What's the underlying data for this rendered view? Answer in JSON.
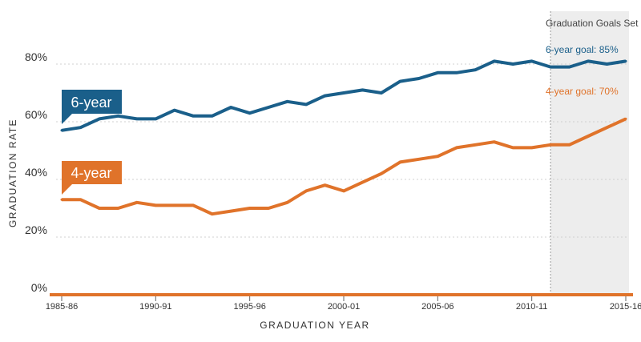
{
  "chart_data": {
    "type": "line",
    "xlabel": "GRADUATION YEAR",
    "ylabel": "GRADUATION RATE",
    "ylim": [
      0,
      85
    ],
    "y_ticks": [
      {
        "value": 0,
        "label": "0%"
      },
      {
        "value": 20,
        "label": "20%"
      },
      {
        "value": 40,
        "label": "40%"
      },
      {
        "value": 60,
        "label": "60%"
      },
      {
        "value": 80,
        "label": "80%"
      }
    ],
    "x_ticks": [
      {
        "index": 0,
        "label": "1985-86"
      },
      {
        "index": 5,
        "label": "1990-91"
      },
      {
        "index": 10,
        "label": "1995-96"
      },
      {
        "index": 15,
        "label": "2000-01"
      },
      {
        "index": 20,
        "label": "2005-06"
      },
      {
        "index": 25,
        "label": "2010-11"
      },
      {
        "index": 30,
        "label": "2015-16"
      }
    ],
    "x": [
      "1985-86",
      "1986-87",
      "1987-88",
      "1988-89",
      "1989-90",
      "1990-91",
      "1991-92",
      "1992-93",
      "1993-94",
      "1994-95",
      "1995-96",
      "1996-97",
      "1997-98",
      "1998-99",
      "1999-00",
      "2000-01",
      "2001-02",
      "2002-03",
      "2003-04",
      "2004-05",
      "2005-06",
      "2006-07",
      "2007-08",
      "2008-09",
      "2009-10",
      "2010-11",
      "2011-12",
      "2012-13",
      "2013-14",
      "2014-15",
      "2015-16"
    ],
    "series": [
      {
        "name": "6-year",
        "color": "#1a5f8a",
        "values": [
          57,
          58,
          61,
          62,
          61,
          61,
          64,
          62,
          62,
          65,
          63,
          65,
          67,
          66,
          69,
          70,
          71,
          70,
          74,
          75,
          77,
          77,
          78,
          81,
          80,
          81,
          79,
          79,
          81,
          80,
          81
        ]
      },
      {
        "name": "4-year",
        "color": "#e0732a",
        "values": [
          33,
          33,
          30,
          30,
          32,
          31,
          31,
          31,
          28,
          29,
          30,
          30,
          32,
          36,
          38,
          36,
          39,
          42,
          46,
          47,
          48,
          51,
          52,
          53,
          51,
          51,
          52,
          52,
          55,
          58,
          61
        ]
      }
    ],
    "goals": {
      "title": "Graduation Goals Set",
      "shade_from_index": 26,
      "six_year": {
        "label": "6-year goal: 85%",
        "value": 85,
        "color": "#1a5f8a"
      },
      "four_year": {
        "label": "4-year goal: 70%",
        "value": 70,
        "color": "#e0732a"
      }
    },
    "baseline_color": "#e0732a",
    "grid": true
  }
}
